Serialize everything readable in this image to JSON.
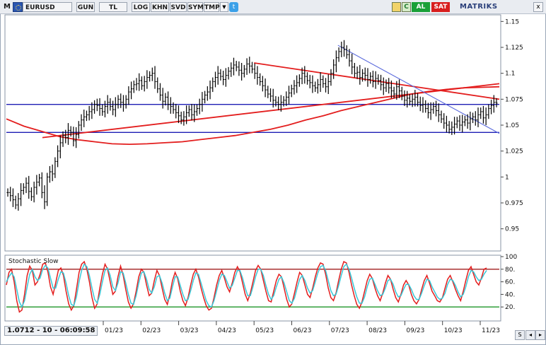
{
  "toolbar": {
    "menu": "M",
    "symbol": "EURUSD",
    "buttons": [
      "GUN",
      "TL",
      "LOG",
      "KHN",
      "SVD",
      "SYM",
      "TMP"
    ],
    "dropdown_glyph": "▼",
    "twitter_glyph": "t",
    "refresh_glyph": "C",
    "buy_label": "AL",
    "sell_label": "SAT",
    "brand": "MATRIKS",
    "close_glyph": "x"
  },
  "status": {
    "text": "1.0712 - 10 - 06:09:58"
  },
  "nav": {
    "prev_glyph": "◂",
    "next_glyph": "▸",
    "sync_glyph": "S"
  },
  "colors": {
    "candles": "#000000",
    "ma_line": "#e31e1e",
    "trend_red": "#e31e1e",
    "trend_blue": "#1e1eb4",
    "downtrend_blue": "#5a6adc",
    "stoch_k": "#e31e1e",
    "stoch_d": "#38c8d8",
    "upper_band": "#a01e1e",
    "lower_band": "#1e9628"
  },
  "chart_data": [
    {
      "type": "line",
      "name": "price",
      "ylim": [
        0.93,
        1.155
      ],
      "y_ticks": [
        "1.15",
        "1.125",
        "1.1",
        "1.075",
        "1.05",
        "1.025",
        "1",
        "0.975",
        "0.95"
      ],
      "y_tick_values": [
        1.15,
        1.125,
        1.1,
        1.075,
        1.05,
        1.025,
        1.0,
        0.975,
        0.95
      ],
      "x_ticks": [
        "01/23",
        "02/23",
        "03/23",
        "04/23",
        "05/23",
        "06/23",
        "07/23",
        "08/23",
        "09/23",
        "10/23",
        "11/23"
      ],
      "ohlc_close": [
        0.985,
        0.982,
        0.978,
        0.973,
        0.979,
        0.987,
        0.99,
        0.994,
        0.986,
        0.981,
        0.99,
        0.995,
        0.999,
        0.985,
        0.976,
        1.0,
        1.005,
        1.003,
        1.015,
        1.025,
        1.033,
        1.04,
        1.038,
        1.045,
        1.043,
        1.035,
        1.041,
        1.05,
        1.055,
        1.058,
        1.06,
        1.063,
        1.065,
        1.07,
        1.069,
        1.066,
        1.063,
        1.068,
        1.072,
        1.068,
        1.065,
        1.07,
        1.075,
        1.072,
        1.07,
        1.075,
        1.082,
        1.085,
        1.089,
        1.09,
        1.093,
        1.088,
        1.092,
        1.096,
        1.098,
        1.1,
        1.092,
        1.085,
        1.079,
        1.073,
        1.077,
        1.07,
        1.068,
        1.065,
        1.062,
        1.059,
        1.055,
        1.058,
        1.062,
        1.065,
        1.06,
        1.063,
        1.066,
        1.07,
        1.075,
        1.079,
        1.082,
        1.086,
        1.092,
        1.096,
        1.1,
        1.097,
        1.094,
        1.098,
        1.102,
        1.105,
        1.108,
        1.106,
        1.103,
        1.1,
        1.104,
        1.109,
        1.107,
        1.104,
        1.1,
        1.096,
        1.092,
        1.088,
        1.084,
        1.08,
        1.078,
        1.074,
        1.072,
        1.07,
        1.072,
        1.074,
        1.077,
        1.081,
        1.085,
        1.088,
        1.091,
        1.095,
        1.1,
        1.097,
        1.093,
        1.091,
        1.088,
        1.086,
        1.089,
        1.094,
        1.09,
        1.087,
        1.092,
        1.1,
        1.108,
        1.115,
        1.121,
        1.125,
        1.123,
        1.118,
        1.112,
        1.106,
        1.1,
        1.101,
        1.096,
        1.1,
        1.098,
        1.094,
        1.097,
        1.092,
        1.095,
        1.093,
        1.089,
        1.086,
        1.09,
        1.086,
        1.083,
        1.08,
        1.087,
        1.083,
        1.078,
        1.074,
        1.076,
        1.073,
        1.075,
        1.077,
        1.072,
        1.069,
        1.07,
        1.066,
        1.062,
        1.065,
        1.068,
        1.064,
        1.06,
        1.056,
        1.052,
        1.05,
        1.046,
        1.048,
        1.051,
        1.054,
        1.05,
        1.053,
        1.055,
        1.052,
        1.056,
        1.058,
        1.055,
        1.06,
        1.063,
        1.057,
        1.06,
        1.066,
        1.069,
        1.072,
        1.0712
      ],
      "moving_average": [
        1.056,
        1.049,
        1.044,
        1.039,
        1.036,
        1.034,
        1.032,
        1.0315,
        1.032,
        1.033,
        1.034,
        1.036,
        1.038,
        1.04,
        1.043,
        1.046,
        1.05,
        1.055,
        1.059,
        1.064,
        1.068,
        1.072,
        1.076,
        1.08,
        1.0825,
        1.0845,
        1.086,
        1.0865,
        1.087
      ],
      "trend_lines": [
        {
          "color": "red",
          "from": [
            "12/22",
            1.038
          ],
          "to": [
            "11/23",
            1.09
          ]
        },
        {
          "color": "red",
          "from": [
            "05/23",
            1.11
          ],
          "to": [
            "11/23",
            1.075
          ]
        },
        {
          "color": "blue",
          "from": [
            "07/23",
            1.127
          ],
          "to": [
            "11/23",
            1.042
          ]
        }
      ],
      "horizontal_levels": [
        1.07,
        1.043
      ]
    },
    {
      "type": "line",
      "name": "Stochastic Slow",
      "title": "Stochastic Slow",
      "ylim": [
        0,
        100
      ],
      "y_ticks": [
        "100",
        "80.",
        "60.",
        "40.",
        "20."
      ],
      "y_tick_values": [
        100,
        80,
        60,
        40,
        20
      ],
      "levels": [
        80,
        20
      ],
      "series": [
        {
          "key": "k",
          "values": [
            55,
            75,
            80,
            60,
            30,
            12,
            15,
            40,
            70,
            85,
            78,
            55,
            60,
            72,
            88,
            90,
            76,
            52,
            40,
            58,
            78,
            82,
            70,
            45,
            25,
            15,
            22,
            48,
            75,
            88,
            92,
            80,
            60,
            35,
            18,
            25,
            50,
            72,
            88,
            80,
            60,
            40,
            45,
            68,
            85,
            70,
            48,
            28,
            18,
            25,
            45,
            68,
            80,
            75,
            55,
            38,
            42,
            62,
            78,
            70,
            50,
            32,
            24,
            40,
            62,
            75,
            65,
            45,
            30,
            22,
            35,
            55,
            72,
            80,
            68,
            50,
            35,
            22,
            15,
            18,
            35,
            55,
            70,
            78,
            66,
            52,
            44,
            58,
            75,
            84,
            76,
            58,
            40,
            30,
            42,
            60,
            78,
            86,
            80,
            62,
            45,
            30,
            28,
            45,
            62,
            72,
            68,
            50,
            32,
            20,
            25,
            42,
            60,
            75,
            70,
            55,
            40,
            35,
            50,
            68,
            82,
            90,
            88,
            72,
            50,
            35,
            30,
            42,
            62,
            80,
            92,
            90,
            75,
            55,
            38,
            24,
            18,
            28,
            45,
            62,
            72,
            65,
            50,
            38,
            30,
            42,
            58,
            70,
            64,
            48,
            35,
            28,
            40,
            55,
            62,
            55,
            40,
            30,
            25,
            32,
            48,
            62,
            70,
            58,
            45,
            38,
            30,
            28,
            35,
            50,
            64,
            70,
            60,
            48,
            38,
            30,
            45,
            62,
            78,
            84,
            72,
            60,
            55,
            66,
            80,
            82
          ]
        },
        {
          "key": "d",
          "values": [
            60,
            68,
            74,
            68,
            48,
            28,
            20,
            30,
            52,
            72,
            80,
            68,
            62,
            66,
            80,
            86,
            82,
            66,
            50,
            50,
            64,
            76,
            74,
            58,
            38,
            24,
            22,
            36,
            60,
            78,
            88,
            84,
            70,
            50,
            32,
            26,
            40,
            60,
            78,
            82,
            70,
            52,
            46,
            58,
            76,
            74,
            58,
            40,
            26,
            24,
            38,
            58,
            74,
            76,
            64,
            48,
            42,
            52,
            68,
            70,
            58,
            42,
            30,
            34,
            52,
            68,
            68,
            54,
            40,
            30,
            32,
            46,
            62,
            74,
            72,
            58,
            44,
            30,
            22,
            20,
            30,
            46,
            62,
            72,
            70,
            60,
            50,
            54,
            66,
            78,
            78,
            66,
            50,
            38,
            38,
            52,
            68,
            80,
            80,
            70,
            54,
            40,
            32,
            38,
            52,
            64,
            68,
            58,
            44,
            30,
            26,
            34,
            50,
            64,
            70,
            62,
            50,
            42,
            46,
            60,
            74,
            84,
            86,
            78,
            62,
            46,
            38,
            40,
            54,
            70,
            84,
            88,
            80,
            66,
            50,
            36,
            26,
            26,
            36,
            52,
            64,
            66,
            56,
            46,
            38,
            40,
            50,
            62,
            64,
            56,
            44,
            36,
            38,
            48,
            56,
            56,
            48,
            38,
            32,
            32,
            42,
            54,
            64,
            62,
            52,
            44,
            36,
            32,
            34,
            42,
            56,
            64,
            62,
            54,
            44,
            36,
            40,
            52,
            68,
            78,
            76,
            68,
            62,
            64,
            72,
            78
          ]
        }
      ]
    }
  ]
}
